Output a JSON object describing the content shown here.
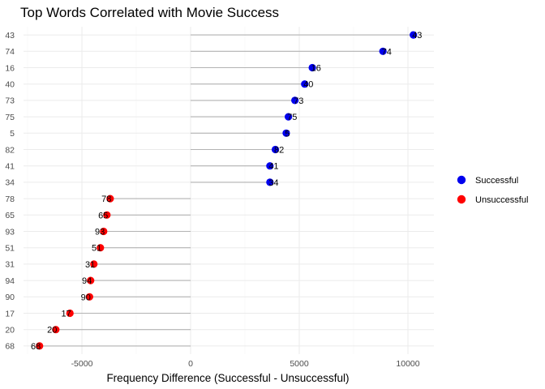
{
  "chart_data": {
    "type": "lollipop",
    "title": "Top Words Correlated with Movie Success",
    "xlabel": "Frequency Difference (Successful - Unsuccessful)",
    "ylabel": "",
    "xlim": [
      -7200,
      11000
    ],
    "x_ticks": [
      -5000,
      0,
      5000,
      10000
    ],
    "x_tick_labels": [
      "-5000",
      "0",
      "5000",
      "10000"
    ],
    "grid": true,
    "legend_position": "right",
    "colors": {
      "Successful": "#0000ee",
      "Unsuccessful": "#ff0000"
    },
    "legend": [
      {
        "label": "Successful",
        "color": "#0000ee"
      },
      {
        "label": "Unsuccessful",
        "color": "#ff0000"
      }
    ],
    "points": [
      {
        "word": "43",
        "value": 10250,
        "group": "Successful"
      },
      {
        "word": "74",
        "value": 8850,
        "group": "Successful"
      },
      {
        "word": "16",
        "value": 5600,
        "group": "Successful"
      },
      {
        "word": "40",
        "value": 5250,
        "group": "Successful"
      },
      {
        "word": "73",
        "value": 4800,
        "group": "Successful"
      },
      {
        "word": "75",
        "value": 4500,
        "group": "Successful"
      },
      {
        "word": "5",
        "value": 4400,
        "group": "Successful"
      },
      {
        "word": "82",
        "value": 3900,
        "group": "Successful"
      },
      {
        "word": "41",
        "value": 3650,
        "group": "Successful"
      },
      {
        "word": "34",
        "value": 3650,
        "group": "Successful"
      },
      {
        "word": "78",
        "value": -3700,
        "group": "Unsuccessful"
      },
      {
        "word": "65",
        "value": -3850,
        "group": "Unsuccessful"
      },
      {
        "word": "93",
        "value": -4000,
        "group": "Unsuccessful"
      },
      {
        "word": "51",
        "value": -4150,
        "group": "Unsuccessful"
      },
      {
        "word": "31",
        "value": -4450,
        "group": "Unsuccessful"
      },
      {
        "word": "94",
        "value": -4600,
        "group": "Unsuccessful"
      },
      {
        "word": "90",
        "value": -4650,
        "group": "Unsuccessful"
      },
      {
        "word": "17",
        "value": -5550,
        "group": "Unsuccessful"
      },
      {
        "word": "20",
        "value": -6200,
        "group": "Unsuccessful"
      },
      {
        "word": "68",
        "value": -6950,
        "group": "Unsuccessful"
      }
    ]
  }
}
